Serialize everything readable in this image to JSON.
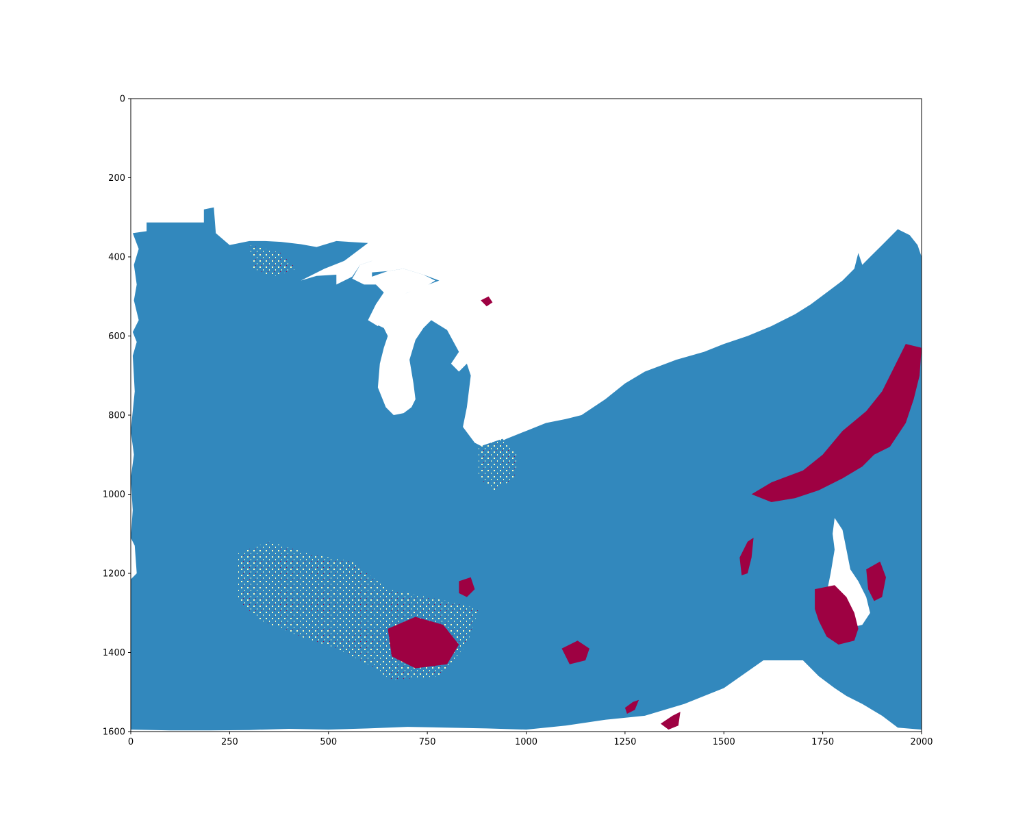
{
  "chart_data": {
    "type": "heatmap",
    "title": "",
    "xlabel": "",
    "ylabel": "",
    "xlim": [
      0,
      2000
    ],
    "ylim": [
      1600,
      0
    ],
    "y_axis_inverted": true,
    "grid": false,
    "legend": "none",
    "x_ticks": [
      {
        "value": 0,
        "label": "0"
      },
      {
        "value": 250,
        "label": "250"
      },
      {
        "value": 500,
        "label": "500"
      },
      {
        "value": 750,
        "label": "750"
      },
      {
        "value": 1000,
        "label": "1000"
      },
      {
        "value": 1250,
        "label": "1250"
      },
      {
        "value": 1500,
        "label": "1500"
      },
      {
        "value": 1750,
        "label": "1750"
      },
      {
        "value": 2000,
        "label": "2000"
      }
    ],
    "y_ticks": [
      {
        "value": 0,
        "label": "0"
      },
      {
        "value": 200,
        "label": "200"
      },
      {
        "value": 400,
        "label": "400"
      },
      {
        "value": 600,
        "label": "600"
      },
      {
        "value": 800,
        "label": "800"
      },
      {
        "value": 1000,
        "label": "1000"
      },
      {
        "value": 1200,
        "label": "1200"
      },
      {
        "value": 1400,
        "label": "1400"
      },
      {
        "value": 1600,
        "label": "1600"
      }
    ],
    "colors": {
      "background_nodata": "#ffffff",
      "main_class": "#3288bd",
      "high_class": "#9e0142",
      "mid_class": "#fdfebf"
    },
    "land_outline": [
      [
        0,
        1595
      ],
      [
        0,
        1215
      ],
      [
        15,
        1200
      ],
      [
        10,
        1130
      ],
      [
        0,
        1110
      ],
      [
        5,
        1040
      ],
      [
        0,
        960
      ],
      [
        8,
        900
      ],
      [
        0,
        840
      ],
      [
        10,
        740
      ],
      [
        5,
        650
      ],
      [
        15,
        615
      ],
      [
        5,
        590
      ],
      [
        20,
        560
      ],
      [
        8,
        510
      ],
      [
        15,
        470
      ],
      [
        8,
        420
      ],
      [
        20,
        380
      ],
      [
        5,
        340
      ],
      [
        40,
        335
      ],
      [
        40,
        313
      ],
      [
        185,
        313
      ],
      [
        185,
        280
      ],
      [
        210,
        275
      ],
      [
        215,
        340
      ],
      [
        250,
        370
      ],
      [
        300,
        360
      ],
      [
        340,
        360
      ],
      [
        380,
        362
      ],
      [
        430,
        368
      ],
      [
        470,
        375
      ],
      [
        520,
        360
      ],
      [
        600,
        365
      ],
      [
        540,
        410
      ],
      [
        490,
        430
      ],
      [
        430,
        460
      ],
      [
        470,
        448
      ],
      [
        520,
        445
      ],
      [
        520,
        470
      ],
      [
        560,
        450
      ],
      [
        580,
        420
      ],
      [
        610,
        410
      ],
      [
        580,
        450
      ],
      [
        600,
        440
      ],
      [
        650,
        436
      ],
      [
        690,
        430
      ],
      [
        740,
        445
      ],
      [
        780,
        460
      ],
      [
        740,
        475
      ],
      [
        700,
        490
      ],
      [
        665,
        510
      ],
      [
        640,
        545
      ],
      [
        620,
        570
      ],
      [
        640,
        580
      ],
      [
        650,
        600
      ],
      [
        640,
        630
      ],
      [
        630,
        670
      ],
      [
        625,
        730
      ],
      [
        645,
        780
      ],
      [
        665,
        800
      ],
      [
        690,
        795
      ],
      [
        710,
        780
      ],
      [
        720,
        760
      ],
      [
        715,
        720
      ],
      [
        705,
        660
      ],
      [
        720,
        610
      ],
      [
        740,
        580
      ],
      [
        760,
        560
      ],
      [
        800,
        585
      ],
      [
        830,
        640
      ],
      [
        810,
        670
      ],
      [
        830,
        690
      ],
      [
        850,
        670
      ],
      [
        860,
        700
      ],
      [
        850,
        780
      ],
      [
        840,
        830
      ],
      [
        870,
        870
      ],
      [
        900,
        885
      ],
      [
        950,
        860
      ],
      [
        1000,
        840
      ],
      [
        1050,
        820
      ],
      [
        1100,
        810
      ],
      [
        1140,
        800
      ],
      [
        1200,
        760
      ],
      [
        1250,
        720
      ],
      [
        1300,
        690
      ],
      [
        1380,
        660
      ],
      [
        1450,
        640
      ],
      [
        1500,
        620
      ],
      [
        1560,
        600
      ],
      [
        1620,
        575
      ],
      [
        1680,
        545
      ],
      [
        1720,
        520
      ],
      [
        1760,
        490
      ],
      [
        1800,
        460
      ],
      [
        1830,
        430
      ],
      [
        1840,
        390
      ],
      [
        1850,
        420
      ],
      [
        1870,
        400
      ],
      [
        1900,
        370
      ],
      [
        1940,
        330
      ],
      [
        1970,
        345
      ],
      [
        1990,
        370
      ],
      [
        2000,
        400
      ],
      [
        2000,
        1595
      ],
      [
        1940,
        1590
      ],
      [
        1900,
        1560
      ],
      [
        1850,
        1530
      ],
      [
        1810,
        1510
      ],
      [
        1780,
        1490
      ],
      [
        1740,
        1460
      ],
      [
        1700,
        1420
      ],
      [
        1600,
        1420
      ],
      [
        1500,
        1490
      ],
      [
        1400,
        1530
      ],
      [
        1300,
        1560
      ],
      [
        1200,
        1570
      ],
      [
        1100,
        1585
      ],
      [
        1000,
        1595
      ],
      [
        900,
        1592
      ],
      [
        800,
        1590
      ],
      [
        700,
        1588
      ],
      [
        600,
        1592
      ],
      [
        500,
        1595
      ],
      [
        400,
        1593
      ],
      [
        300,
        1596
      ],
      [
        200,
        1597
      ],
      [
        100,
        1597
      ]
    ],
    "inland_waters": [
      [
        [
          610,
          450
        ],
        [
          650,
          436
        ],
        [
          690,
          430
        ],
        [
          740,
          445
        ],
        [
          770,
          460
        ],
        [
          740,
          478
        ],
        [
          700,
          490
        ],
        [
          670,
          510
        ],
        [
          645,
          545
        ],
        [
          625,
          575
        ],
        [
          600,
          560
        ],
        [
          620,
          520
        ],
        [
          640,
          490
        ],
        [
          620,
          470
        ],
        [
          590,
          470
        ],
        [
          560,
          455
        ],
        [
          580,
          420
        ],
        [
          610,
          410
        ]
      ],
      [
        [
          1780,
          1060
        ],
        [
          1800,
          1090
        ],
        [
          1810,
          1140
        ],
        [
          1820,
          1190
        ],
        [
          1840,
          1220
        ],
        [
          1860,
          1260
        ],
        [
          1870,
          1300
        ],
        [
          1850,
          1330
        ],
        [
          1830,
          1335
        ],
        [
          1800,
          1310
        ],
        [
          1770,
          1290
        ],
        [
          1760,
          1250
        ],
        [
          1770,
          1200
        ],
        [
          1780,
          1140
        ],
        [
          1775,
          1100
        ]
      ]
    ],
    "regions": [
      {
        "class": "high",
        "points": [
          [
            1570,
            1000
          ],
          [
            1620,
            970
          ],
          [
            1700,
            940
          ],
          [
            1750,
            900
          ],
          [
            1800,
            840
          ],
          [
            1860,
            790
          ],
          [
            1900,
            740
          ],
          [
            1930,
            680
          ],
          [
            1960,
            620
          ],
          [
            2000,
            630
          ],
          [
            1995,
            700
          ],
          [
            1980,
            760
          ],
          [
            1960,
            820
          ],
          [
            1920,
            880
          ],
          [
            1880,
            900
          ],
          [
            1850,
            930
          ],
          [
            1800,
            960
          ],
          [
            1740,
            990
          ],
          [
            1680,
            1010
          ],
          [
            1620,
            1020
          ]
        ]
      },
      {
        "class": "high",
        "points": [
          [
            1540,
            1160
          ],
          [
            1560,
            1120
          ],
          [
            1575,
            1110
          ],
          [
            1570,
            1160
          ],
          [
            1560,
            1200
          ],
          [
            1545,
            1205
          ]
        ]
      },
      {
        "class": "high",
        "points": [
          [
            1730,
            1240
          ],
          [
            1780,
            1230
          ],
          [
            1810,
            1260
          ],
          [
            1830,
            1300
          ],
          [
            1840,
            1340
          ],
          [
            1830,
            1370
          ],
          [
            1790,
            1380
          ],
          [
            1760,
            1360
          ],
          [
            1740,
            1320
          ],
          [
            1730,
            1290
          ]
        ]
      },
      {
        "class": "high",
        "points": [
          [
            1860,
            1190
          ],
          [
            1895,
            1170
          ],
          [
            1910,
            1210
          ],
          [
            1900,
            1260
          ],
          [
            1880,
            1270
          ],
          [
            1865,
            1240
          ]
        ]
      },
      {
        "class": "high",
        "points": [
          [
            1250,
            1540
          ],
          [
            1270,
            1525
          ],
          [
            1285,
            1520
          ],
          [
            1275,
            1545
          ],
          [
            1255,
            1555
          ]
        ]
      },
      {
        "class": "high",
        "points": [
          [
            1340,
            1580
          ],
          [
            1370,
            1560
          ],
          [
            1390,
            1550
          ],
          [
            1385,
            1585
          ],
          [
            1360,
            1595
          ]
        ]
      },
      {
        "class": "high",
        "points": [
          [
            885,
            510
          ],
          [
            905,
            500
          ],
          [
            915,
            515
          ],
          [
            900,
            525
          ]
        ]
      },
      {
        "class": "high",
        "points": [
          [
            830,
            1220
          ],
          [
            860,
            1210
          ],
          [
            870,
            1240
          ],
          [
            850,
            1260
          ],
          [
            830,
            1250
          ]
        ]
      },
      {
        "class": "mid",
        "points": [
          [
            270,
            1150
          ],
          [
            350,
            1120
          ],
          [
            450,
            1150
          ],
          [
            560,
            1170
          ],
          [
            650,
            1240
          ],
          [
            800,
            1270
          ],
          [
            880,
            1290
          ],
          [
            850,
            1380
          ],
          [
            780,
            1460
          ],
          [
            660,
            1470
          ],
          [
            600,
            1430
          ],
          [
            520,
            1390
          ],
          [
            430,
            1360
          ],
          [
            330,
            1320
          ],
          [
            270,
            1270
          ]
        ]
      },
      {
        "class": "high",
        "points": [
          [
            650,
            1340
          ],
          [
            720,
            1310
          ],
          [
            790,
            1330
          ],
          [
            830,
            1380
          ],
          [
            800,
            1430
          ],
          [
            720,
            1440
          ],
          [
            660,
            1410
          ]
        ]
      },
      {
        "class": "mid",
        "points": [
          [
            880,
            880
          ],
          [
            940,
            860
          ],
          [
            980,
            900
          ],
          [
            970,
            960
          ],
          [
            920,
            990
          ],
          [
            880,
            960
          ]
        ]
      },
      {
        "class": "high",
        "points": [
          [
            1090,
            1390
          ],
          [
            1130,
            1370
          ],
          [
            1160,
            1390
          ],
          [
            1150,
            1420
          ],
          [
            1110,
            1430
          ]
        ]
      },
      {
        "class": "mid",
        "points": [
          [
            300,
            370
          ],
          [
            380,
            390
          ],
          [
            420,
            430
          ],
          [
            360,
            450
          ],
          [
            310,
            430
          ]
        ]
      }
    ]
  }
}
